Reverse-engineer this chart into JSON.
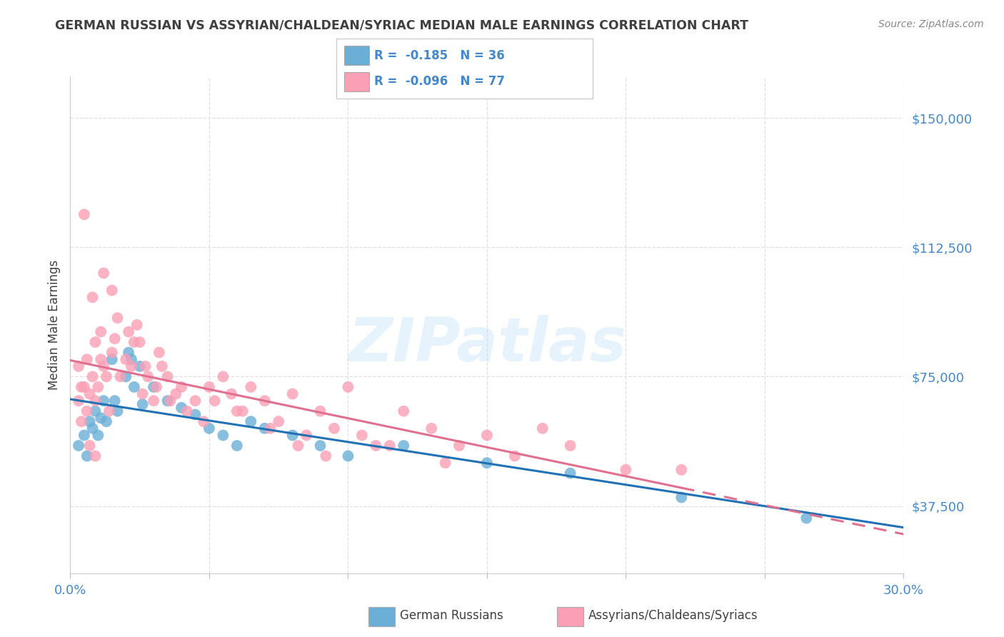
{
  "title": "GERMAN RUSSIAN VS ASSYRIAN/CHALDEAN/SYRIAC MEDIAN MALE EARNINGS CORRELATION CHART",
  "source": "Source: ZipAtlas.com",
  "ylabel": "Median Male Earnings",
  "y_ticks": [
    37500,
    75000,
    112500,
    150000
  ],
  "y_tick_labels": [
    "$37,500",
    "$75,000",
    "$112,500",
    "$150,000"
  ],
  "x_range": [
    0.0,
    30.0
  ],
  "y_range": [
    18000,
    162000
  ],
  "x_tick_positions": [
    0.0,
    5.0,
    10.0,
    15.0,
    20.0,
    25.0,
    30.0
  ],
  "legend_blue_r": "-0.185",
  "legend_blue_n": "36",
  "legend_pink_r": "-0.096",
  "legend_pink_n": "77",
  "blue_color": "#6baed6",
  "pink_color": "#fa9fb5",
  "blue_line_color": "#2171b5",
  "pink_line_color": "#e07090",
  "legend_label_blue": "German Russians",
  "legend_label_pink": "Assyrians/Chaldeans/Syriacs",
  "watermark": "ZIPatlas",
  "title_color": "#404040",
  "source_color": "#888888",
  "axis_label_color": "#4488cc",
  "grid_color": "#e0e0e0",
  "blue_scatter": [
    [
      0.3,
      55000
    ],
    [
      0.5,
      58000
    ],
    [
      0.6,
      52000
    ],
    [
      0.7,
      62000
    ],
    [
      0.8,
      60000
    ],
    [
      0.9,
      65000
    ],
    [
      1.0,
      58000
    ],
    [
      1.1,
      63000
    ],
    [
      1.2,
      68000
    ],
    [
      1.3,
      62000
    ],
    [
      1.5,
      80000
    ],
    [
      1.6,
      68000
    ],
    [
      1.7,
      65000
    ],
    [
      2.0,
      75000
    ],
    [
      2.1,
      82000
    ],
    [
      2.2,
      80000
    ],
    [
      2.3,
      72000
    ],
    [
      2.5,
      78000
    ],
    [
      2.6,
      67000
    ],
    [
      3.0,
      72000
    ],
    [
      3.5,
      68000
    ],
    [
      4.0,
      66000
    ],
    [
      4.5,
      64000
    ],
    [
      5.0,
      60000
    ],
    [
      5.5,
      58000
    ],
    [
      6.0,
      55000
    ],
    [
      6.5,
      62000
    ],
    [
      7.0,
      60000
    ],
    [
      8.0,
      58000
    ],
    [
      9.0,
      55000
    ],
    [
      10.0,
      52000
    ],
    [
      12.0,
      55000
    ],
    [
      15.0,
      50000
    ],
    [
      18.0,
      47000
    ],
    [
      22.0,
      40000
    ],
    [
      26.5,
      34000
    ]
  ],
  "pink_scatter": [
    [
      0.3,
      68000
    ],
    [
      0.4,
      62000
    ],
    [
      0.5,
      72000
    ],
    [
      0.5,
      122000
    ],
    [
      0.6,
      65000
    ],
    [
      0.7,
      70000
    ],
    [
      0.8,
      75000
    ],
    [
      0.8,
      98000
    ],
    [
      0.9,
      68000
    ],
    [
      1.0,
      72000
    ],
    [
      1.1,
      80000
    ],
    [
      1.2,
      78000
    ],
    [
      1.2,
      105000
    ],
    [
      1.3,
      75000
    ],
    [
      1.4,
      65000
    ],
    [
      1.5,
      82000
    ],
    [
      1.5,
      100000
    ],
    [
      1.6,
      86000
    ],
    [
      1.7,
      92000
    ],
    [
      1.8,
      75000
    ],
    [
      2.0,
      80000
    ],
    [
      2.1,
      88000
    ],
    [
      2.2,
      78000
    ],
    [
      2.3,
      85000
    ],
    [
      2.4,
      90000
    ],
    [
      2.6,
      70000
    ],
    [
      2.8,
      75000
    ],
    [
      3.0,
      68000
    ],
    [
      3.2,
      82000
    ],
    [
      3.3,
      78000
    ],
    [
      3.5,
      75000
    ],
    [
      3.8,
      70000
    ],
    [
      4.0,
      72000
    ],
    [
      4.2,
      65000
    ],
    [
      4.5,
      68000
    ],
    [
      5.0,
      72000
    ],
    [
      5.5,
      75000
    ],
    [
      5.8,
      70000
    ],
    [
      6.0,
      65000
    ],
    [
      6.5,
      72000
    ],
    [
      7.0,
      68000
    ],
    [
      7.5,
      62000
    ],
    [
      8.0,
      70000
    ],
    [
      8.5,
      58000
    ],
    [
      9.0,
      65000
    ],
    [
      9.5,
      60000
    ],
    [
      10.0,
      72000
    ],
    [
      10.5,
      58000
    ],
    [
      11.0,
      55000
    ],
    [
      11.5,
      55000
    ],
    [
      12.0,
      65000
    ],
    [
      13.0,
      60000
    ],
    [
      13.5,
      50000
    ],
    [
      14.0,
      55000
    ],
    [
      15.0,
      58000
    ],
    [
      16.0,
      52000
    ],
    [
      17.0,
      60000
    ],
    [
      18.0,
      55000
    ],
    [
      20.0,
      48000
    ],
    [
      22.0,
      48000
    ],
    [
      0.3,
      78000
    ],
    [
      0.4,
      72000
    ],
    [
      0.6,
      80000
    ],
    [
      0.9,
      85000
    ],
    [
      1.1,
      88000
    ],
    [
      2.5,
      85000
    ],
    [
      2.7,
      78000
    ],
    [
      3.1,
      72000
    ],
    [
      3.6,
      68000
    ],
    [
      4.8,
      62000
    ],
    [
      5.2,
      68000
    ],
    [
      6.2,
      65000
    ],
    [
      7.2,
      60000
    ],
    [
      8.2,
      55000
    ],
    [
      9.2,
      52000
    ],
    [
      0.7,
      55000
    ],
    [
      0.9,
      52000
    ]
  ]
}
